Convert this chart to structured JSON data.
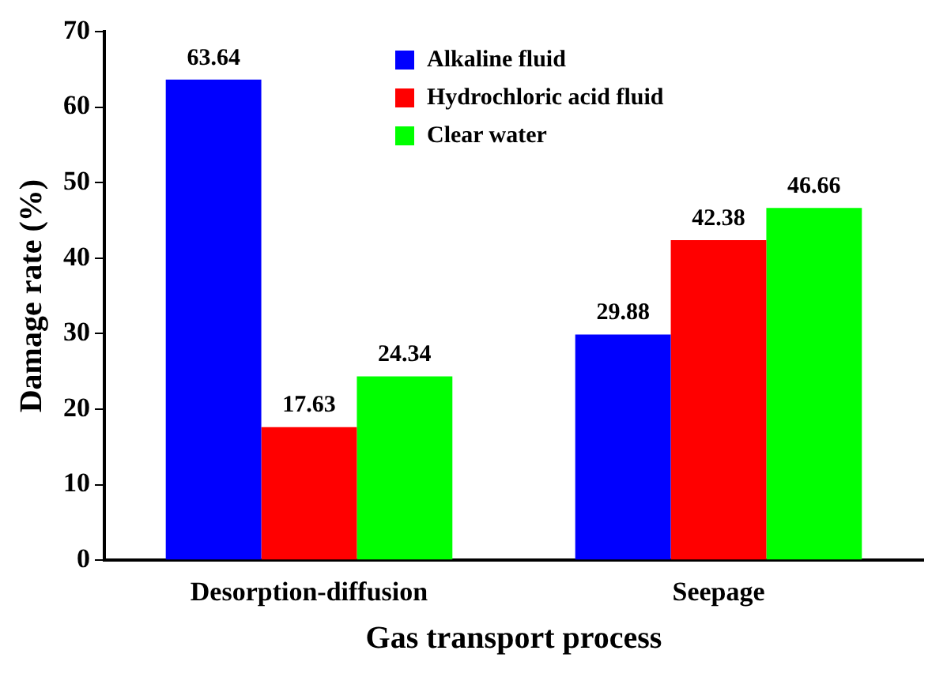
{
  "chart_data": {
    "type": "bar",
    "xlabel": "Gas transport process",
    "ylabel": "Damage rate (%)",
    "categories": [
      "Desorption-diffusion",
      "Seepage"
    ],
    "series": [
      {
        "name": "Alkaline fluid",
        "color": "#0000ff",
        "values": [
          63.64,
          29.88
        ]
      },
      {
        "name": "Hydrochloric acid fluid",
        "color": "#ff0000",
        "values": [
          17.63,
          42.38
        ]
      },
      {
        "name": "Clear water",
        "color": "#00ff00",
        "values": [
          24.34,
          46.66
        ]
      }
    ],
    "ylim": [
      0,
      70
    ],
    "yticks": [
      0,
      10,
      20,
      30,
      40,
      50,
      60,
      70
    ],
    "grid": false,
    "legend": "top",
    "data_labels": true
  }
}
